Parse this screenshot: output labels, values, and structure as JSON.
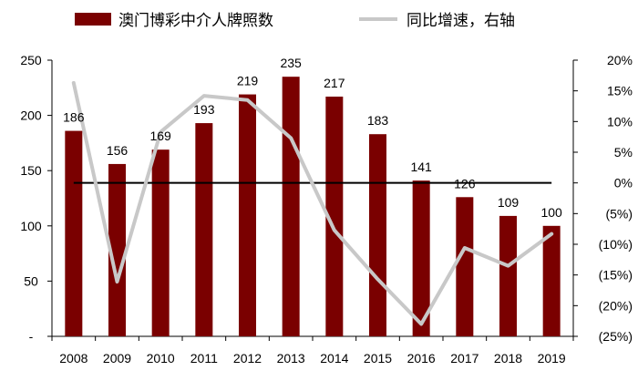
{
  "chart_data": {
    "type": "bar",
    "categories": [
      "2008",
      "2009",
      "2010",
      "2011",
      "2012",
      "2013",
      "2014",
      "2015",
      "2016",
      "2017",
      "2018",
      "2019"
    ],
    "series": [
      {
        "name": "澳门博彩中介人牌照数",
        "type": "bar",
        "axis": "left",
        "color": "#7a0000",
        "values": [
          186,
          156,
          169,
          193,
          219,
          235,
          217,
          183,
          141,
          126,
          109,
          100
        ]
      },
      {
        "name": "同比增速，右轴",
        "type": "line",
        "axis": "right",
        "color": "#c8c8c8",
        "values": [
          16.3,
          -16.1,
          8.3,
          14.2,
          13.5,
          7.3,
          -7.7,
          -15.7,
          -23.0,
          -10.6,
          -13.5,
          -8.3
        ]
      }
    ],
    "y_left": {
      "ylim": [
        0,
        250
      ],
      "ticks": [
        0,
        50,
        100,
        150,
        200,
        250
      ],
      "tick_labels": [
        "-",
        "50",
        "100",
        "150",
        "200",
        "250"
      ]
    },
    "y_right": {
      "ylim": [
        -25,
        20
      ],
      "ticks": [
        -25,
        -20,
        -15,
        -10,
        -5,
        0,
        5,
        10,
        15,
        20
      ],
      "tick_labels": [
        "(25%)",
        "(20%)",
        "(15%)",
        "(10%)",
        "(5%)",
        "0%",
        "5%",
        "10%",
        "15%",
        "20%"
      ]
    },
    "reference_line": {
      "axis": "right",
      "value": 0,
      "color": "#000000"
    },
    "legend_position": "top",
    "grid": false,
    "title": "",
    "xlabel": "",
    "ylabel": ""
  }
}
